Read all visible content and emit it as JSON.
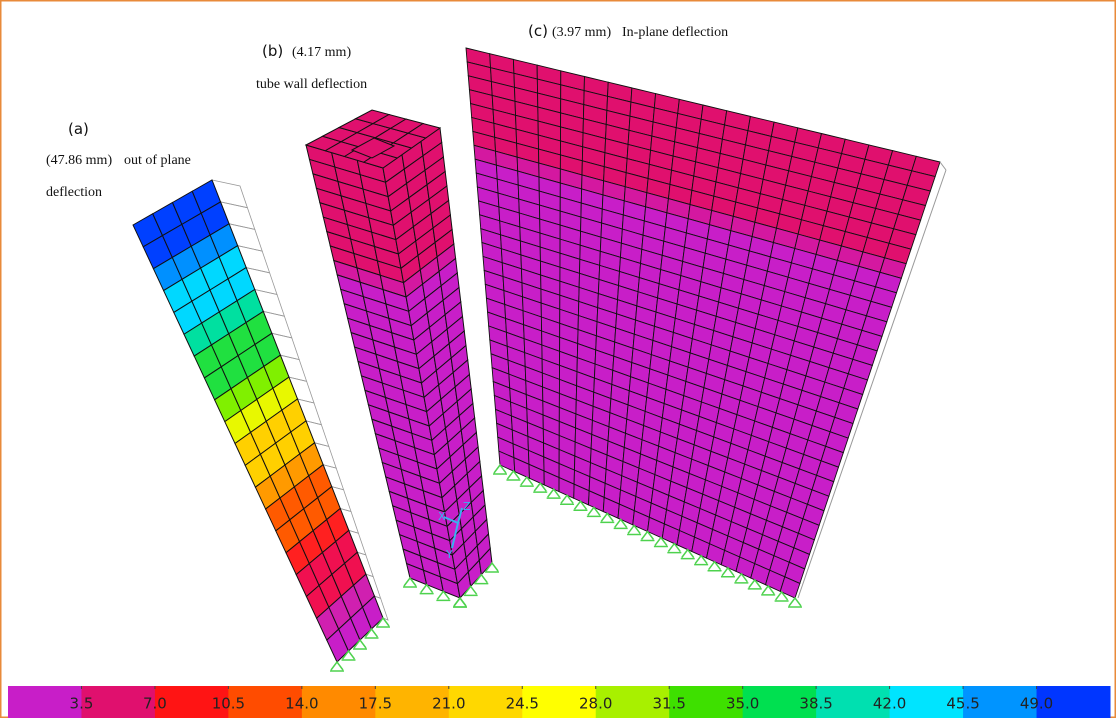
{
  "panels": [
    {
      "label": "(a)",
      "deflection": "(47.86 mm)",
      "caption": [
        "out of plane",
        "deflection"
      ]
    },
    {
      "label": "(b)",
      "deflection": "(4.17 mm)",
      "caption": [
        "tube wall deflection"
      ]
    },
    {
      "label": "(c)",
      "deflection": "(3.97 mm)",
      "caption": [
        "In-plane deflection"
      ]
    }
  ],
  "axis_labels": [
    "X",
    "Z",
    "Y"
  ],
  "colorbar": {
    "colors": [
      "#c81ec8",
      "#e0106e",
      "#ff1414",
      "#ff4c00",
      "#ff8a00",
      "#ffb400",
      "#ffd800",
      "#ffff00",
      "#a8f000",
      "#3ee000",
      "#00e050",
      "#00e0b0",
      "#00e4ff",
      "#0094ff",
      "#0036ff"
    ],
    "ticks": [
      {
        "value": 3.5,
        "label": "3.5"
      },
      {
        "value": 7,
        "label": "7.0"
      },
      {
        "value": 10.5,
        "label": "10.5"
      },
      {
        "value": 14,
        "label": "14.0"
      },
      {
        "value": 17.5,
        "label": "17.5"
      },
      {
        "value": 21,
        "label": "21.0"
      },
      {
        "value": 24.5,
        "label": "24.5"
      },
      {
        "value": 28,
        "label": "28.0"
      },
      {
        "value": 31.5,
        "label": "31.5"
      },
      {
        "value": 35,
        "label": "35.0"
      },
      {
        "value": 38.5,
        "label": "38.5"
      },
      {
        "value": 42,
        "label": "42.0"
      },
      {
        "value": 45.5,
        "label": "45.5"
      },
      {
        "value": 49,
        "label": "49.0"
      }
    ]
  }
}
